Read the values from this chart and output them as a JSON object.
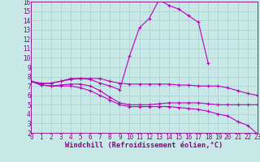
{
  "background_color": "#c8e8e8",
  "grid_color": "#a8cccc",
  "line_color": "#bb00bb",
  "xlim": [
    0,
    23
  ],
  "ylim": [
    2,
    16
  ],
  "xticks": [
    0,
    1,
    2,
    3,
    4,
    5,
    6,
    7,
    8,
    9,
    10,
    11,
    12,
    13,
    14,
    15,
    16,
    17,
    18,
    19,
    20,
    21,
    22,
    23
  ],
  "yticks": [
    2,
    3,
    4,
    5,
    6,
    7,
    8,
    9,
    10,
    11,
    12,
    13,
    14,
    15,
    16
  ],
  "lines": [
    {
      "x": [
        0,
        1,
        2,
        3,
        4,
        5,
        6,
        7,
        8,
        9,
        10,
        11,
        12,
        13,
        14,
        15,
        16,
        17,
        18
      ],
      "y": [
        7.5,
        7.3,
        7.3,
        7.5,
        7.7,
        7.8,
        7.7,
        7.3,
        7.0,
        6.6,
        10.2,
        13.2,
        14.2,
        16.2,
        15.6,
        15.2,
        14.5,
        13.8,
        9.4
      ]
    },
    {
      "x": [
        0,
        1,
        2,
        3,
        4,
        5,
        6,
        7,
        8,
        9,
        10,
        11,
        12,
        13,
        14,
        15,
        16,
        17,
        18,
        19,
        20,
        21,
        22,
        23
      ],
      "y": [
        7.5,
        7.2,
        7.3,
        7.5,
        7.8,
        7.8,
        7.8,
        7.8,
        7.5,
        7.3,
        7.2,
        7.2,
        7.2,
        7.2,
        7.2,
        7.1,
        7.1,
        7.0,
        7.0,
        7.0,
        6.8,
        6.5,
        6.2,
        6.0
      ]
    },
    {
      "x": [
        0,
        1,
        2,
        3,
        4,
        5,
        6,
        7,
        8,
        9,
        10,
        11,
        12,
        13,
        14,
        15,
        16,
        17,
        18,
        19,
        20,
        21,
        22,
        23
      ],
      "y": [
        7.5,
        7.1,
        7.0,
        7.1,
        7.2,
        7.2,
        7.0,
        6.5,
        5.8,
        5.2,
        5.0,
        5.0,
        5.0,
        5.1,
        5.2,
        5.2,
        5.2,
        5.2,
        5.1,
        5.0,
        5.0,
        5.0,
        5.0,
        5.0
      ]
    },
    {
      "x": [
        0,
        1,
        2,
        3,
        4,
        5,
        6,
        7,
        8,
        9,
        10,
        11,
        12,
        13,
        14,
        15,
        16,
        17,
        18,
        19,
        20,
        21,
        22,
        23
      ],
      "y": [
        7.5,
        7.1,
        7.0,
        7.0,
        7.0,
        6.8,
        6.5,
        6.0,
        5.5,
        5.0,
        4.8,
        4.8,
        4.8,
        4.8,
        4.8,
        4.7,
        4.6,
        4.5,
        4.3,
        4.0,
        3.8,
        3.2,
        2.8,
        1.9
      ]
    }
  ],
  "tick_fontsize": 5.5,
  "xlabel": "Windchill (Refroidissement éolien,°C)",
  "xlabel_fontsize": 6.2,
  "label_color": "#880088"
}
